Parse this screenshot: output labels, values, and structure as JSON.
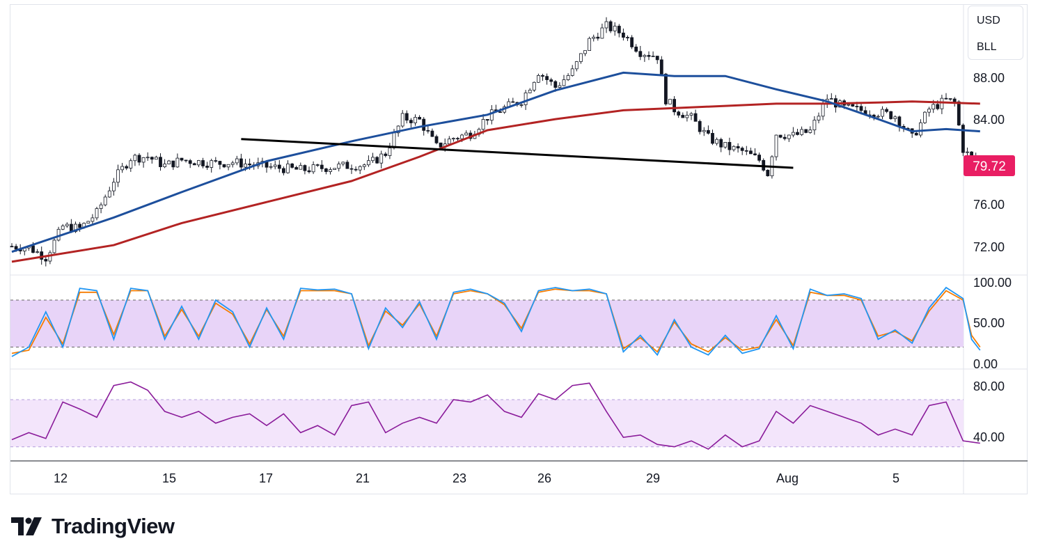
{
  "header": {
    "currency": "USD",
    "unit": "BLL"
  },
  "branding": {
    "logo_text": "TradingView",
    "logo_icon": "tradingview-logo-icon"
  },
  "colors": {
    "ma_fast": "#1d4f9c",
    "ma_slow": "#b32323",
    "candles": "#131722",
    "neckline": "#000000",
    "stoch_k": "#2196f3",
    "stoch_d": "#f57c00",
    "rsi": "#8a1b9a",
    "band_fill": "#e8d4f8",
    "price_badge": "#e91e63"
  },
  "chart_data": [
    {
      "type": "candlestick",
      "price_axis": {
        "ticks": [
          "88.00",
          "84.00",
          "76.00",
          "72.00"
        ],
        "ylim": [
          69.8,
          94.3
        ]
      },
      "last_price": "79.72",
      "x_ticks": [
        "12",
        "15",
        "17",
        "21",
        "23",
        "26",
        "29",
        "Aug",
        "5"
      ],
      "close_path": [
        [
          0,
          72.4
        ],
        [
          2,
          72.3
        ],
        [
          4,
          71.4
        ],
        [
          6,
          74.2
        ],
        [
          8,
          74.0
        ],
        [
          10,
          75.4
        ],
        [
          12,
          78.4
        ],
        [
          14,
          80.4
        ],
        [
          16,
          80.5
        ],
        [
          18,
          79.7
        ],
        [
          20,
          80.2
        ],
        [
          24,
          79.9
        ],
        [
          26,
          80.0
        ],
        [
          30,
          79.6
        ],
        [
          34,
          79.3
        ],
        [
          38,
          79.6
        ],
        [
          42,
          79.8
        ],
        [
          44,
          80.8
        ],
        [
          46,
          84.0
        ],
        [
          48,
          83.8
        ],
        [
          50,
          81.4
        ],
        [
          52,
          82.2
        ],
        [
          54,
          82.6
        ],
        [
          56,
          84.1
        ],
        [
          58,
          84.9
        ],
        [
          60,
          85.6
        ],
        [
          62,
          88.2
        ],
        [
          64,
          86.8
        ],
        [
          66,
          88.2
        ],
        [
          68,
          91.0
        ],
        [
          70,
          92.3
        ],
        [
          72,
          91.6
        ],
        [
          74,
          90.0
        ],
        [
          76,
          89.6
        ],
        [
          77,
          85.7
        ],
        [
          78,
          84.8
        ],
        [
          80,
          84.0
        ],
        [
          82,
          82.2
        ],
        [
          84,
          81.4
        ],
        [
          86,
          81.0
        ],
        [
          88,
          80.2
        ],
        [
          89,
          79.0
        ],
        [
          90,
          82.6
        ],
        [
          92,
          82.4
        ],
        [
          94,
          82.8
        ],
        [
          96,
          85.8
        ],
        [
          98,
          84.9
        ],
        [
          100,
          84.7
        ],
        [
          102,
          84.5
        ],
        [
          104,
          84.2
        ],
        [
          106,
          82.2
        ],
        [
          108,
          84.8
        ],
        [
          110,
          85.6
        ],
        [
          111,
          85.4
        ],
        [
          112,
          81.2
        ],
        [
          113,
          80.3
        ],
        [
          114,
          79.8
        ]
      ],
      "series": [
        {
          "name": "",
          "color": "#1d4f9c",
          "points": [
            [
              0,
              71.9
            ],
            [
              12,
              75.0
            ],
            [
              20,
              77.3
            ],
            [
              30,
              80.1
            ],
            [
              40,
              81.9
            ],
            [
              48,
              83.2
            ],
            [
              56,
              84.3
            ],
            [
              64,
              86.5
            ],
            [
              72,
              88.1
            ],
            [
              78,
              87.8
            ],
            [
              84,
              87.8
            ],
            [
              90,
              86.6
            ],
            [
              96,
              85.5
            ],
            [
              102,
              83.9
            ],
            [
              106,
              82.8
            ],
            [
              110,
              83.0
            ],
            [
              114,
              82.8
            ]
          ]
        },
        {
          "name": "",
          "color": "#b32323",
          "points": [
            [
              0,
              71.0
            ],
            [
              12,
              72.5
            ],
            [
              20,
              74.5
            ],
            [
              30,
              76.4
            ],
            [
              40,
              78.3
            ],
            [
              48,
              80.5
            ],
            [
              56,
              82.9
            ],
            [
              64,
              83.9
            ],
            [
              72,
              84.7
            ],
            [
              78,
              84.9
            ],
            [
              84,
              85.1
            ],
            [
              90,
              85.3
            ],
            [
              96,
              85.3
            ],
            [
              102,
              85.4
            ],
            [
              106,
              85.5
            ],
            [
              110,
              85.4
            ],
            [
              114,
              85.3
            ]
          ]
        }
      ],
      "neckline": [
        [
          27,
          82.1
        ],
        [
          92,
          79.5
        ]
      ]
    },
    {
      "type": "line",
      "y_ticks": [
        "100.00",
        "50.00",
        "0.00"
      ],
      "ylim": [
        -8,
        112
      ],
      "band": [
        20,
        80
      ],
      "series": [
        {
          "name": "",
          "color": "#2196f3",
          "points": [
            [
              0,
              8
            ],
            [
              2,
              20
            ],
            [
              4,
              65
            ],
            [
              6,
              20
            ],
            [
              8,
              95
            ],
            [
              10,
              92
            ],
            [
              12,
              30
            ],
            [
              14,
              95
            ],
            [
              16,
              92
            ],
            [
              18,
              30
            ],
            [
              20,
              72
            ],
            [
              22,
              30
            ],
            [
              24,
              80
            ],
            [
              26,
              65
            ],
            [
              28,
              20
            ],
            [
              30,
              70
            ],
            [
              32,
              30
            ],
            [
              34,
              95
            ],
            [
              36,
              93
            ],
            [
              38,
              94
            ],
            [
              40,
              88
            ],
            [
              42,
              18
            ],
            [
              44,
              70
            ],
            [
              46,
              45
            ],
            [
              48,
              78
            ],
            [
              50,
              30
            ],
            [
              52,
              90
            ],
            [
              54,
              94
            ],
            [
              56,
              88
            ],
            [
              58,
              76
            ],
            [
              60,
              40
            ],
            [
              62,
              92
            ],
            [
              64,
              96
            ],
            [
              66,
              92
            ],
            [
              68,
              94
            ],
            [
              70,
              88
            ],
            [
              72,
              14
            ],
            [
              74,
              35
            ],
            [
              76,
              10
            ],
            [
              78,
              55
            ],
            [
              80,
              20
            ],
            [
              82,
              10
            ],
            [
              84,
              35
            ],
            [
              86,
              12
            ],
            [
              88,
              18
            ],
            [
              90,
              60
            ],
            [
              92,
              18
            ],
            [
              94,
              94
            ],
            [
              96,
              86
            ],
            [
              98,
              88
            ],
            [
              100,
              82
            ],
            [
              102,
              30
            ],
            [
              104,
              42
            ],
            [
              106,
              25
            ],
            [
              108,
              70
            ],
            [
              110,
              96
            ],
            [
              112,
              82
            ],
            [
              113,
              30
            ],
            [
              114,
              16
            ]
          ]
        },
        {
          "name": "",
          "color": "#f57c00",
          "points": [
            [
              0,
              12
            ],
            [
              2,
              16
            ],
            [
              4,
              58
            ],
            [
              6,
              24
            ],
            [
              8,
              90
            ],
            [
              10,
              90
            ],
            [
              12,
              36
            ],
            [
              14,
              92
            ],
            [
              16,
              92
            ],
            [
              18,
              34
            ],
            [
              20,
              68
            ],
            [
              22,
              34
            ],
            [
              24,
              76
            ],
            [
              26,
              62
            ],
            [
              28,
              24
            ],
            [
              30,
              68
            ],
            [
              32,
              34
            ],
            [
              34,
              92
            ],
            [
              36,
              92
            ],
            [
              38,
              92
            ],
            [
              40,
              88
            ],
            [
              42,
              22
            ],
            [
              44,
              66
            ],
            [
              46,
              48
            ],
            [
              48,
              75
            ],
            [
              50,
              34
            ],
            [
              52,
              88
            ],
            [
              54,
              92
            ],
            [
              56,
              88
            ],
            [
              58,
              74
            ],
            [
              60,
              44
            ],
            [
              62,
              90
            ],
            [
              64,
              94
            ],
            [
              66,
              92
            ],
            [
              68,
              92
            ],
            [
              70,
              88
            ],
            [
              72,
              18
            ],
            [
              74,
              32
            ],
            [
              76,
              14
            ],
            [
              78,
              52
            ],
            [
              80,
              24
            ],
            [
              82,
              14
            ],
            [
              84,
              32
            ],
            [
              86,
              16
            ],
            [
              88,
              20
            ],
            [
              90,
              55
            ],
            [
              92,
              22
            ],
            [
              94,
              90
            ],
            [
              96,
              86
            ],
            [
              98,
              86
            ],
            [
              100,
              80
            ],
            [
              102,
              34
            ],
            [
              104,
              40
            ],
            [
              106,
              28
            ],
            [
              108,
              66
            ],
            [
              110,
              92
            ],
            [
              112,
              80
            ],
            [
              113,
              35
            ],
            [
              114,
              20
            ]
          ]
        }
      ]
    },
    {
      "type": "line",
      "y_ticks": [
        "80.00",
        "40.00"
      ],
      "ylim": [
        18,
        96
      ],
      "band": [
        30,
        70
      ],
      "series": [
        {
          "name": "",
          "color": "#8a1b9a",
          "points": [
            [
              0,
              36
            ],
            [
              2,
              42
            ],
            [
              4,
              37
            ],
            [
              6,
              68
            ],
            [
              8,
              62
            ],
            [
              10,
              55
            ],
            [
              12,
              82
            ],
            [
              14,
              85
            ],
            [
              16,
              78
            ],
            [
              18,
              60
            ],
            [
              20,
              55
            ],
            [
              22,
              60
            ],
            [
              24,
              50
            ],
            [
              26,
              55
            ],
            [
              28,
              58
            ],
            [
              30,
              48
            ],
            [
              32,
              58
            ],
            [
              34,
              42
            ],
            [
              36,
              48
            ],
            [
              38,
              40
            ],
            [
              40,
              65
            ],
            [
              42,
              68
            ],
            [
              44,
              42
            ],
            [
              46,
              50
            ],
            [
              48,
              55
            ],
            [
              50,
              50
            ],
            [
              52,
              70
            ],
            [
              54,
              68
            ],
            [
              56,
              74
            ],
            [
              58,
              60
            ],
            [
              60,
              55
            ],
            [
              62,
              75
            ],
            [
              64,
              70
            ],
            [
              66,
              82
            ],
            [
              68,
              84
            ],
            [
              70,
              60
            ],
            [
              72,
              38
            ],
            [
              74,
              40
            ],
            [
              76,
              32
            ],
            [
              78,
              30
            ],
            [
              80,
              35
            ],
            [
              82,
              28
            ],
            [
              84,
              40
            ],
            [
              86,
              30
            ],
            [
              88,
              35
            ],
            [
              90,
              60
            ],
            [
              92,
              50
            ],
            [
              94,
              65
            ],
            [
              96,
              60
            ],
            [
              98,
              55
            ],
            [
              100,
              50
            ],
            [
              102,
              40
            ],
            [
              104,
              45
            ],
            [
              106,
              40
            ],
            [
              108,
              65
            ],
            [
              110,
              68
            ],
            [
              112,
              35
            ],
            [
              114,
              33
            ]
          ]
        }
      ]
    }
  ]
}
